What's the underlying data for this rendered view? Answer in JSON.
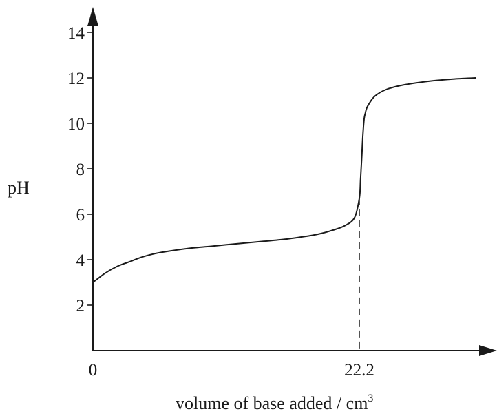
{
  "chart_data": {
    "type": "line",
    "title": "",
    "ylabel": "pH",
    "xlabel_main": "volume of base added / cm",
    "xlabel_sup": "3",
    "xlim": [
      0,
      35
    ],
    "ylim": [
      0,
      14.8
    ],
    "y_ticks": [
      2,
      4,
      6,
      8,
      10,
      12,
      14
    ],
    "y_tick_labels": [
      "2",
      "4",
      "6",
      "8",
      "10",
      "12",
      "14"
    ],
    "x_ticks": [
      0,
      22.2
    ],
    "x_tick_labels": [
      "0",
      "22.2"
    ],
    "grid": false,
    "line_color": "#1a1a1a",
    "series": [
      {
        "x": [
          0,
          1,
          2,
          3,
          4,
          5,
          6,
          8,
          10,
          12,
          14,
          16,
          18,
          19,
          20,
          21,
          21.8,
          22.2,
          22.3,
          22.4,
          22.5,
          22.6,
          22.7,
          22.8,
          23.0,
          23.5,
          24.5,
          26,
          28,
          30,
          31.9
        ],
        "y": [
          3.0,
          3.4,
          3.7,
          3.9,
          4.1,
          4.25,
          4.35,
          4.5,
          4.6,
          4.7,
          4.8,
          4.9,
          5.05,
          5.15,
          5.3,
          5.5,
          5.85,
          6.7,
          7.5,
          8.5,
          9.5,
          10.2,
          10.45,
          10.65,
          10.85,
          11.2,
          11.5,
          11.7,
          11.85,
          11.95,
          12.0
        ]
      }
    ],
    "annotations": [
      {
        "type": "dashed-vertical",
        "x": 22.2,
        "y_from": 0,
        "y_to": 6.7
      }
    ]
  }
}
